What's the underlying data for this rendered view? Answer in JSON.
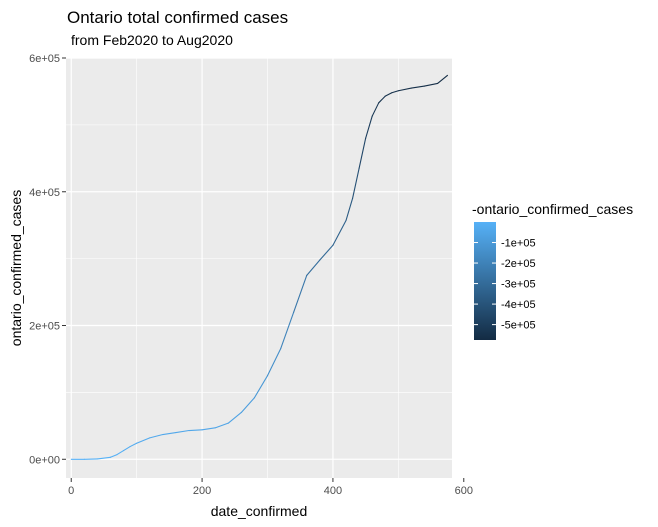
{
  "chart_data": {
    "type": "line",
    "title": "Ontario total confirmed cases",
    "subtitle": "from Feb2020 to Aug2020",
    "xlabel": "date_confirmed",
    "ylabel": "ontario_confirmed_cases",
    "xlim": [
      -8,
      582
    ],
    "ylim": [
      -28000,
      600000
    ],
    "x_ticks": [
      0,
      200,
      400,
      600
    ],
    "x_tick_labels": [
      "0",
      "200",
      "400",
      "600"
    ],
    "y_ticks": [
      0,
      200000,
      400000,
      600000
    ],
    "y_tick_labels": [
      "0e+00",
      "2e+05",
      "4e+05",
      "6e+05"
    ],
    "grid": true,
    "legend_position": "right",
    "legend": {
      "title": "-ontario_confirmed_cases",
      "breaks": [
        -100000,
        -200000,
        -300000,
        -400000,
        -500000
      ],
      "labels": [
        "-1e+05",
        "-2e+05",
        "-3e+05",
        "-4e+05",
        "-5e+05"
      ],
      "range": [
        -575000,
        0
      ],
      "color_low": "#132b43",
      "color_high": "#56b1f7"
    },
    "colors": {
      "panel_bg": "#ebebeb",
      "grid": "#ffffff"
    },
    "series": [
      {
        "x": [
          0,
          20,
          40,
          60,
          70,
          80,
          90,
          100,
          120,
          140,
          160,
          180,
          200,
          220,
          240,
          260,
          280,
          300,
          320,
          340,
          360,
          380,
          400,
          420,
          430,
          440,
          450,
          460,
          470,
          480,
          490,
          500,
          520,
          540,
          560,
          575
        ],
        "y": [
          0,
          0,
          500,
          3000,
          7000,
          13000,
          19000,
          24000,
          32000,
          37000,
          40000,
          43000,
          44000,
          47000,
          54000,
          70000,
          92000,
          125000,
          165000,
          220000,
          275000,
          298000,
          320000,
          357000,
          390000,
          435000,
          480000,
          513000,
          533000,
          543000,
          548000,
          551000,
          555000,
          558000,
          562000,
          574000
        ]
      }
    ]
  }
}
